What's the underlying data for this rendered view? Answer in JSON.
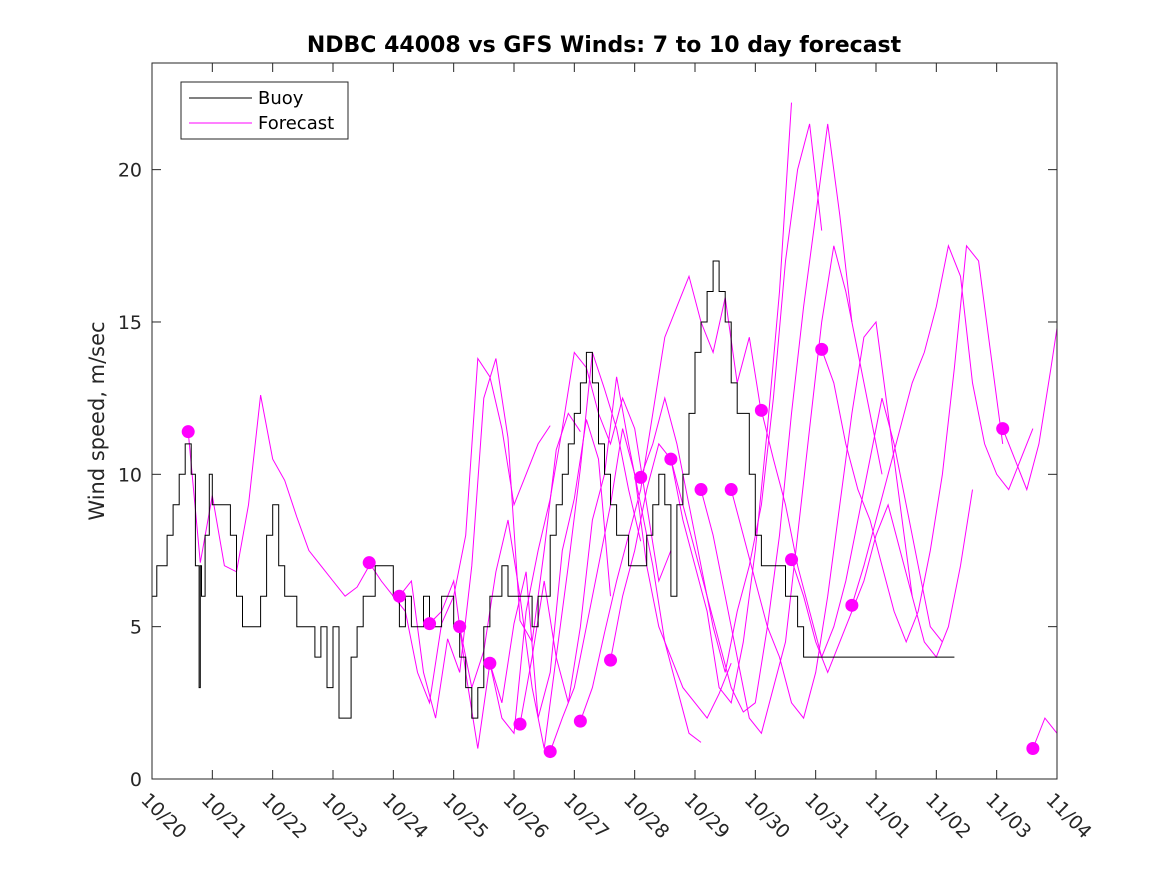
{
  "chart_data": {
    "type": "line",
    "title": "NDBC 44008 vs GFS Winds: 7 to 10 day forecast",
    "xlabel": "",
    "ylabel": "Wind speed, m/sec",
    "xlim": [
      0,
      15
    ],
    "ylim": [
      0,
      23.5
    ],
    "x_tick_labels": [
      "10/20",
      "10/21",
      "10/22",
      "10/23",
      "10/24",
      "10/25",
      "10/26",
      "10/27",
      "10/28",
      "10/29",
      "10/30",
      "10/31",
      "11/01",
      "11/02",
      "11/03",
      "11/04"
    ],
    "y_ticks": [
      0,
      5,
      10,
      15,
      20
    ],
    "grid": false,
    "legend": {
      "position": "top-left",
      "entries": [
        "Buoy",
        "Forecast"
      ]
    },
    "colors": {
      "buoy": "#000000",
      "forecast": "#ff00ff"
    },
    "buoy": {
      "name": "Buoy",
      "x": [
        0,
        0.08,
        0.15,
        0.25,
        0.35,
        0.45,
        0.55,
        0.6,
        0.65,
        0.72,
        0.78,
        0.8,
        0.82,
        0.88,
        0.95,
        1.0,
        1.05,
        1.1,
        1.2,
        1.3,
        1.4,
        1.5,
        1.6,
        1.7,
        1.8,
        1.9,
        2.0,
        2.1,
        2.2,
        2.3,
        2.4,
        2.5,
        2.6,
        2.7,
        2.8,
        2.9,
        3.0,
        3.1,
        3.2,
        3.3,
        3.4,
        3.5,
        3.6,
        3.7,
        3.8,
        3.9,
        4.0,
        4.1,
        4.2,
        4.3,
        4.4,
        4.5,
        4.6,
        4.7,
        4.8,
        4.9,
        5.0,
        5.1,
        5.2,
        5.3,
        5.4,
        5.5,
        5.6,
        5.7,
        5.8,
        5.9,
        6.0,
        6.1,
        6.2,
        6.3,
        6.4,
        6.5,
        6.6,
        6.7,
        6.8,
        6.9,
        7.0,
        7.1,
        7.2,
        7.3,
        7.4,
        7.5,
        7.6,
        7.7,
        7.8,
        7.9,
        8.0,
        8.1,
        8.2,
        8.3,
        8.4,
        8.5,
        8.6,
        8.7,
        8.8,
        8.9,
        9.0,
        9.1,
        9.2,
        9.3,
        9.4,
        9.5,
        9.6,
        9.7,
        9.8,
        9.9,
        10.0,
        10.1,
        10.2,
        10.3,
        10.4,
        10.5,
        10.6,
        10.7,
        10.8,
        10.9,
        11.0,
        11.1,
        11.2,
        11.3,
        11.4,
        11.5,
        11.6,
        11.7,
        11.8,
        11.9,
        12.0,
        12.1,
        12.2,
        12.3,
        12.4,
        12.5,
        12.6,
        12.7,
        12.8,
        12.9,
        13.0,
        13.1,
        13.2,
        13.3
      ],
      "values": [
        6,
        7,
        7,
        8,
        9,
        10,
        11,
        11,
        10,
        7,
        3,
        7,
        6,
        8,
        10,
        9,
        9,
        9,
        9,
        8,
        6,
        5,
        5,
        5,
        6,
        8,
        9,
        7,
        6,
        6,
        5,
        5,
        5,
        4,
        5,
        3,
        5,
        2,
        2,
        4,
        5,
        6,
        6,
        7,
        7,
        7,
        6,
        5,
        6,
        5,
        5,
        6,
        5,
        5,
        6,
        6,
        5,
        4,
        3,
        2,
        3,
        5,
        6,
        6,
        7,
        6,
        6,
        6,
        6,
        5,
        6,
        6,
        8,
        9,
        10,
        11,
        12,
        13,
        14,
        13,
        11,
        10,
        9,
        8,
        8,
        7,
        7,
        7,
        8,
        9,
        10,
        9,
        6,
        9,
        10,
        12,
        14,
        15,
        16,
        17,
        16,
        15,
        13,
        12,
        12,
        10,
        8,
        7,
        7,
        7,
        7,
        6,
        6,
        5,
        4,
        4,
        4,
        4,
        4,
        4,
        4,
        4,
        4,
        4,
        4,
        4,
        4,
        4,
        4,
        4,
        4,
        4,
        4,
        4,
        4,
        4,
        4,
        4,
        4,
        4
      ]
    },
    "forecast_runs": [
      {
        "x": [
          0.6,
          0.8,
          1.0,
          1.2,
          1.4,
          1.6,
          1.8,
          2.0,
          2.2,
          2.4,
          2.6,
          2.8,
          3.0,
          3.2,
          3.4,
          3.6
        ],
        "values": [
          11.4,
          7.1,
          9.3,
          7.0,
          6.8,
          9.0,
          12.6,
          10.5,
          9.8,
          8.6,
          7.5,
          7.0,
          6.5,
          6.0,
          6.3,
          7.0
        ]
      },
      {
        "x": [
          3.6,
          3.8,
          4.0,
          4.2,
          4.4,
          4.6,
          4.8,
          5.0,
          5.2,
          5.4,
          5.6,
          5.8,
          6.0,
          6.2,
          6.4,
          6.6
        ],
        "values": [
          7.1,
          6.5,
          6.0,
          5.5,
          3.5,
          2.5,
          5.1,
          6.0,
          8.0,
          13.8,
          13.2,
          11.5,
          9.0,
          10.0,
          11.0,
          11.6
        ]
      },
      {
        "x": [
          4.1,
          4.3,
          4.5,
          4.7,
          4.9,
          5.1,
          5.3,
          5.5,
          5.7,
          5.9,
          6.1,
          6.3,
          6.5,
          6.7,
          6.9,
          7.1
        ],
        "values": [
          6.0,
          6.5,
          3.5,
          2.0,
          4.6,
          3.5,
          7.0,
          12.5,
          13.8,
          11.2,
          5.2,
          4.5,
          7.5,
          10.8,
          12.0,
          11.4
        ]
      },
      {
        "x": [
          4.6,
          4.8,
          5.0,
          5.2,
          5.4,
          5.6,
          5.8,
          6.0,
          6.2,
          6.4,
          6.6,
          6.8,
          7.0,
          7.2,
          7.4,
          7.6
        ],
        "values": [
          5.1,
          5.5,
          6.5,
          3.5,
          1.0,
          3.8,
          2.5,
          5.1,
          6.8,
          2.0,
          3.5,
          7.5,
          9.2,
          11.8,
          10.5,
          6.0
        ]
      },
      {
        "x": [
          5.1,
          5.3,
          5.5,
          5.7,
          5.9,
          6.1,
          6.3,
          6.5,
          6.7,
          6.9,
          7.1,
          7.3,
          7.5,
          7.7,
          7.9,
          8.1
        ],
        "values": [
          5.0,
          3.0,
          4.2,
          6.8,
          8.5,
          6.0,
          3.0,
          1.0,
          4.0,
          7.0,
          10.2,
          14.0,
          12.8,
          11.5,
          9.5,
          7.8
        ]
      },
      {
        "x": [
          5.6,
          5.8,
          6.0,
          6.2,
          6.4,
          6.6,
          6.8,
          7.0,
          7.2,
          7.4,
          7.6,
          7.8,
          8.0,
          8.2,
          8.4,
          8.6
        ],
        "values": [
          3.8,
          2.0,
          1.5,
          5.5,
          7.5,
          9.2,
          11.5,
          14.0,
          13.5,
          12.0,
          11.0,
          12.5,
          11.5,
          9.0,
          6.5,
          7.5
        ]
      },
      {
        "x": [
          6.1,
          6.3,
          6.5,
          6.7,
          6.9,
          7.1,
          7.3,
          7.5,
          7.7,
          7.9,
          8.1,
          8.3,
          8.5,
          8.7,
          8.9,
          9.1
        ],
        "values": [
          1.8,
          4.0,
          6.5,
          4.0,
          2.5,
          5.0,
          8.5,
          10.0,
          13.2,
          11.0,
          9.0,
          7.0,
          4.5,
          3.0,
          1.5,
          1.2
        ]
      },
      {
        "x": [
          6.6,
          6.8,
          7.0,
          7.2,
          7.4,
          7.6,
          7.8,
          8.0,
          8.2,
          8.4,
          8.6,
          8.8,
          9.0,
          9.2,
          9.4,
          9.6
        ],
        "values": [
          0.9,
          2.0,
          3.0,
          5.0,
          7.0,
          9.0,
          11.5,
          10.0,
          7.0,
          5.0,
          4.0,
          3.0,
          2.5,
          2.0,
          2.8,
          3.8
        ]
      },
      {
        "x": [
          7.1,
          7.3,
          7.5,
          7.7,
          7.9,
          8.1,
          8.3,
          8.5,
          8.7,
          8.9,
          9.1,
          9.3,
          9.5,
          9.7,
          9.9,
          10.1
        ],
        "values": [
          1.9,
          3.0,
          4.8,
          6.5,
          8.0,
          9.5,
          12.0,
          14.5,
          15.5,
          16.5,
          15.0,
          14.0,
          15.8,
          13.0,
          14.5,
          12.0
        ]
      },
      {
        "x": [
          7.6,
          7.8,
          8.0,
          8.2,
          8.4,
          8.6,
          8.8,
          9.0,
          9.2,
          9.4,
          9.6,
          9.8,
          10.0,
          10.2,
          10.4,
          10.6
        ],
        "values": [
          3.9,
          6.0,
          7.5,
          9.5,
          11.0,
          10.5,
          8.5,
          7.0,
          5.5,
          3.0,
          2.5,
          4.5,
          7.5,
          11.5,
          16.0,
          22.2
        ]
      },
      {
        "x": [
          8.1,
          8.3,
          8.5,
          8.7,
          8.9,
          9.1,
          9.3,
          9.5,
          9.7,
          9.9,
          10.1,
          10.3,
          10.5,
          10.7,
          10.9,
          11.1
        ],
        "values": [
          9.9,
          11.0,
          12.5,
          11.0,
          9.0,
          7.0,
          5.0,
          3.5,
          5.5,
          7.0,
          9.0,
          12.5,
          17.0,
          20.0,
          21.5,
          18.0
        ]
      },
      {
        "x": [
          8.6,
          8.8,
          9.0,
          9.2,
          9.4,
          9.6,
          9.8,
          10.0,
          10.2,
          10.4,
          10.6,
          10.8,
          11.0,
          11.2,
          11.4,
          11.6
        ],
        "values": [
          10.5,
          9.0,
          7.5,
          6.0,
          4.5,
          3.0,
          2.2,
          2.5,
          5.0,
          8.0,
          12.0,
          15.5,
          18.5,
          21.5,
          18.5,
          15.0
        ]
      },
      {
        "x": [
          9.1,
          9.3,
          9.5,
          9.7,
          9.9,
          10.1,
          10.3,
          10.5,
          10.7,
          10.9,
          11.1,
          11.3,
          11.5,
          11.7,
          11.9,
          12.1
        ],
        "values": [
          9.5,
          8.0,
          6.0,
          4.0,
          2.0,
          1.5,
          3.0,
          4.5,
          8.0,
          11.5,
          15.0,
          17.5,
          16.0,
          14.0,
          12.0,
          10.0
        ]
      },
      {
        "x": [
          9.6,
          9.8,
          10.0,
          10.2,
          10.4,
          10.6,
          10.8,
          11.0,
          11.2,
          11.4,
          11.6,
          11.8,
          12.0,
          12.2,
          12.4,
          12.6
        ],
        "values": [
          9.5,
          8.0,
          6.5,
          5.0,
          4.0,
          2.5,
          2.0,
          3.5,
          6.0,
          9.0,
          12.0,
          14.5,
          15.0,
          12.0,
          9.0,
          6.0
        ]
      },
      {
        "x": [
          10.1,
          10.3,
          10.5,
          10.7,
          10.9,
          11.1,
          11.3,
          11.5,
          11.7,
          11.9,
          12.1,
          12.3,
          12.5,
          12.7,
          12.9,
          13.1
        ],
        "values": [
          12.1,
          10.5,
          9.0,
          7.0,
          5.5,
          4.0,
          5.0,
          6.5,
          8.5,
          10.5,
          12.5,
          11.0,
          9.0,
          7.0,
          5.0,
          4.5
        ]
      },
      {
        "x": [
          10.6,
          10.8,
          11.0,
          11.2,
          11.4,
          11.6,
          11.8,
          12.0,
          12.2,
          12.4,
          12.6,
          12.8,
          13.0,
          13.2,
          13.4,
          13.6
        ],
        "values": [
          7.2,
          6.0,
          4.5,
          3.5,
          4.5,
          5.5,
          6.5,
          8.0,
          9.0,
          7.5,
          6.0,
          4.5,
          4.0,
          5.0,
          7.0,
          9.5
        ]
      },
      {
        "x": [
          11.1,
          11.3,
          11.5,
          11.7,
          11.9,
          12.1,
          12.3,
          12.5,
          12.7,
          12.9,
          13.1,
          13.3,
          13.5,
          13.7,
          13.9,
          14.1
        ],
        "values": [
          14.1,
          13.0,
          11.0,
          9.5,
          8.5,
          7.0,
          5.5,
          4.5,
          5.5,
          7.5,
          10.0,
          13.5,
          17.5,
          17.0,
          14.0,
          11.0
        ]
      },
      {
        "x": [
          11.6,
          11.8,
          12.0,
          12.2,
          12.4,
          12.6,
          12.8,
          13.0,
          13.2,
          13.4,
          13.6,
          13.8,
          14.0,
          14.2,
          14.4,
          14.6
        ],
        "values": [
          5.7,
          7.0,
          8.5,
          10.0,
          11.5,
          13.0,
          14.0,
          15.5,
          17.5,
          16.5,
          13.0,
          11.0,
          10.0,
          9.5,
          10.5,
          11.5
        ]
      },
      {
        "x": [
          14.1,
          14.3,
          14.5,
          14.7,
          14.9,
          15.0
        ],
        "values": [
          11.5,
          10.5,
          9.5,
          11.0,
          13.5,
          14.8
        ]
      },
      {
        "x": [
          14.6,
          14.8,
          15.0
        ],
        "values": [
          1.0,
          2.0,
          1.5
        ]
      }
    ],
    "forecast_points": {
      "name": "Forecast",
      "x": [
        0.6,
        3.6,
        4.1,
        4.6,
        5.1,
        5.6,
        6.1,
        6.6,
        7.1,
        7.6,
        8.1,
        8.6,
        9.1,
        9.6,
        10.1,
        10.6,
        11.1,
        11.6,
        14.1,
        14.6
      ],
      "values": [
        11.4,
        7.1,
        6.0,
        5.1,
        5.0,
        3.8,
        1.8,
        0.9,
        1.9,
        3.9,
        9.9,
        10.5,
        9.5,
        9.5,
        12.1,
        7.2,
        14.1,
        5.7,
        11.5,
        1.0
      ]
    }
  }
}
